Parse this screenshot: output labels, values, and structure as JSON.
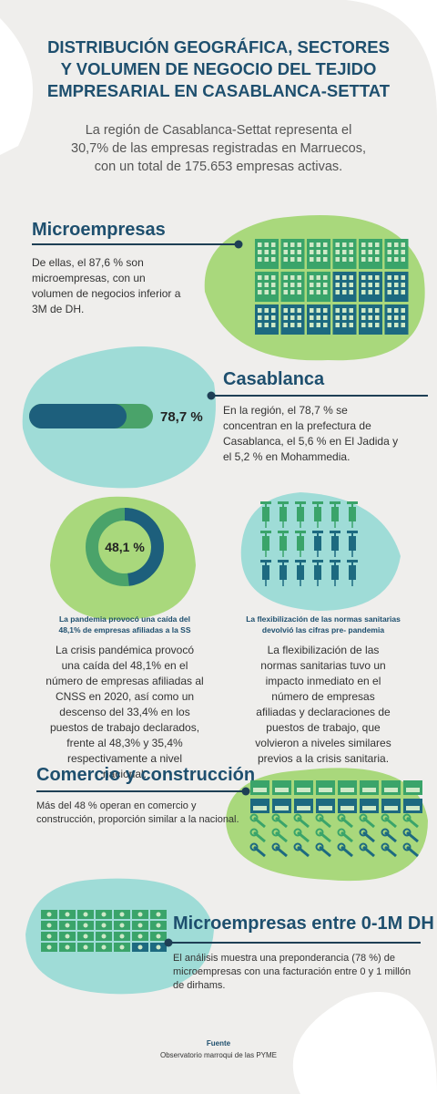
{
  "header": {
    "title": [
      "DISTRIBUCIÓN GEOGRÁFICA, SECTORES",
      "Y VOLUMEN DE NEGOCIO DEL TEJIDO",
      "EMPRESARIAL EN CASABLANCA-SETTAT"
    ],
    "intro": [
      "La región de Casablanca-Settat representa el",
      "30,7% de las empresas registradas en Marruecos,",
      "con un total de 175.653 empresas activas."
    ]
  },
  "microempresas": {
    "title": "Microempresas",
    "text": [
      "De ellas, el 87,6 % son",
      "microempresas, con un",
      "volumen de negocios  inferior a",
      "3M de DH."
    ]
  },
  "casablanca": {
    "title": "Casablanca",
    "bar": {
      "value": 78.7,
      "label": "78,7 %"
    },
    "text": [
      "En la región, el 78,7 % se",
      "concentran en la prefectura de",
      "Casablanca, el 5,6 % en El Jadida y",
      "el 5,2 % en Mohammedia."
    ]
  },
  "pandemia": {
    "donut": {
      "value": 48.1,
      "label": "48,1 %"
    },
    "title": [
      "La pandemia provocó una caída del",
      "48,1% de empresas afiliadas a la SS"
    ],
    "text": [
      "La crisis pandémica provocó",
      "una caída del 48,1% en el",
      "número de empresas afiliadas al",
      "CNSS en 2020, así como un",
      "descenso del 33,4% en los",
      "puestos de trabajo declarados,",
      "frente al 48,3% y 35,4%",
      "respectivamente a nivel",
      "nacional."
    ]
  },
  "flexibilizacion": {
    "title": [
      "La flexibilización de las normas sanitarias",
      "devolvió las cifras pre- pandemia"
    ],
    "text": [
      "La flexibilización de las",
      "normas sanitarias tuvo un",
      "impacto inmediato en el",
      "número de empresas",
      "afiliadas y declaraciones de",
      "puestos de trabajo, que",
      "volvieron a niveles similares",
      "previos a la crisis sanitaria."
    ]
  },
  "comercio": {
    "title": "Comercio y construcción",
    "text": [
      "Más del 48 % operan en comercio y",
      "construcción, proporción similar a la nacional."
    ]
  },
  "facturacion": {
    "title": "Microempresas entre 0-1M DH",
    "text": [
      "El análisis muestra una preponderancia (78 %) de",
      "microempresas con una facturación entre 0 y 1 millón",
      "de dirhams."
    ]
  },
  "footer": {
    "label": "Fuente",
    "text": "Observatorio marroqui de las PYME"
  }
}
